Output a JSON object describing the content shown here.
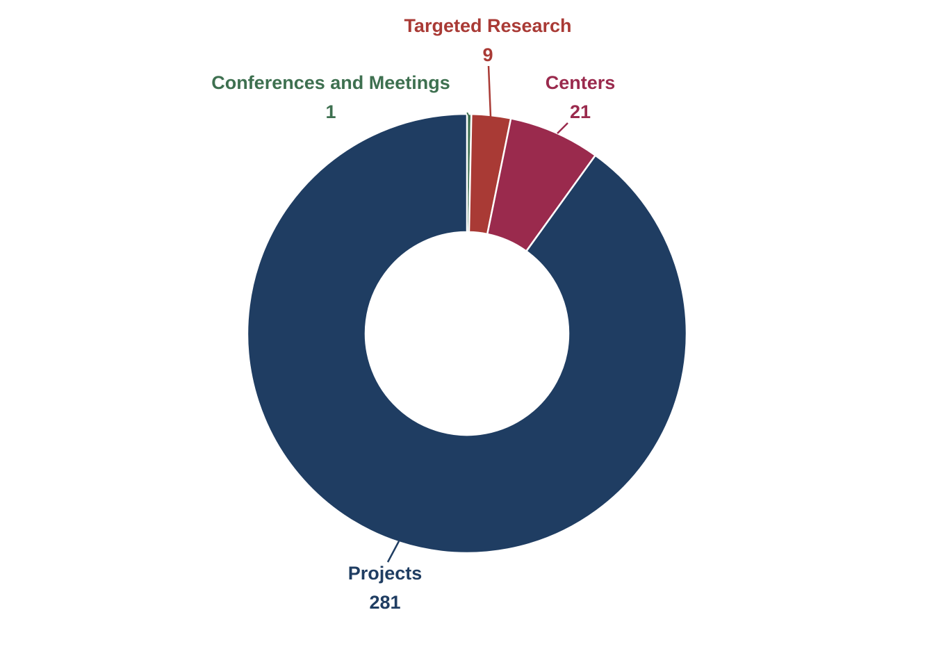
{
  "chart_data": {
    "type": "pie",
    "variant": "donut",
    "title": "",
    "legend": "none",
    "slices": [
      {
        "label": "Conferences and Meetings",
        "value": 1,
        "color": "#3e7050"
      },
      {
        "label": "Targeted Research",
        "value": 9,
        "color": "#a93a35"
      },
      {
        "label": "Centers",
        "value": 21,
        "color": "#9a2a4d"
      },
      {
        "label": "Projects",
        "value": 281,
        "color": "#1f3d62"
      }
    ]
  }
}
